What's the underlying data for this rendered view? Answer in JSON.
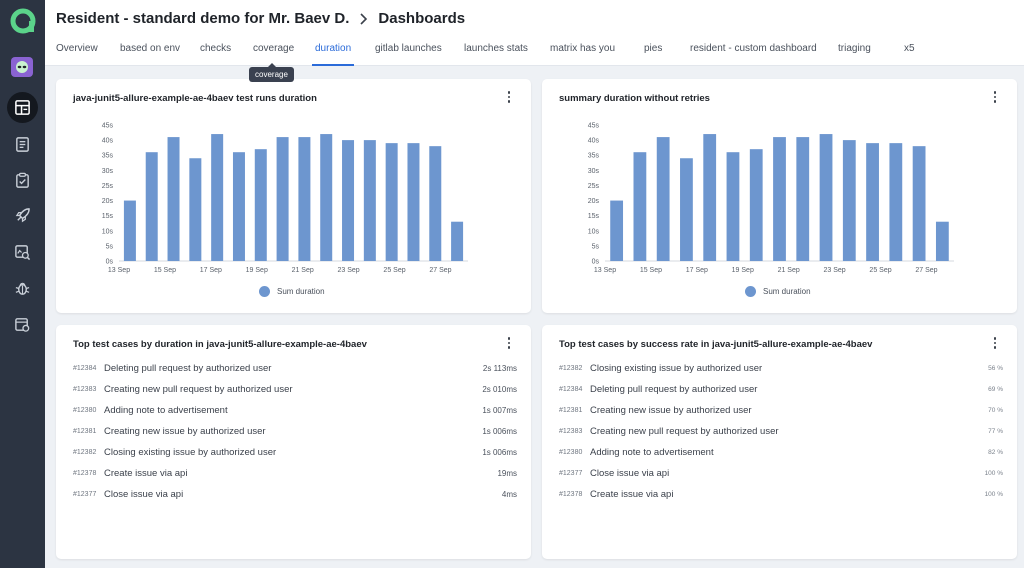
{
  "breadcrumb": {
    "project": "Resident - standard demo for Mr. Baev D.",
    "page": "Dashboards"
  },
  "tabs": [
    "Overview",
    "based on env",
    "checks",
    "coverage",
    "duration",
    "gitlab launches",
    "launches stats",
    "matrix has you",
    "pies",
    "resident - custom dashboard",
    "triaging",
    "x5"
  ],
  "active_tab": "duration",
  "tooltip": "coverage",
  "sidebar": {
    "items": [
      {
        "icon": "dashboards-icon",
        "active": true
      },
      {
        "icon": "test-cases-icon",
        "active": false
      },
      {
        "icon": "test-plans-icon",
        "active": false
      },
      {
        "icon": "launches-icon",
        "active": false
      },
      {
        "icon": "analytics-icon",
        "active": false
      },
      {
        "icon": "defects-icon",
        "active": false
      },
      {
        "icon": "jobs-icon",
        "active": false
      }
    ]
  },
  "accent_color": "#6d96cf",
  "chart_data": [
    {
      "type": "bar",
      "title": "java-junit5-allure-example-ae-4baev test runs duration",
      "y_ticks": [
        "0s",
        "5s",
        "10s",
        "15s",
        "20s",
        "25s",
        "30s",
        "35s",
        "40s",
        "45s"
      ],
      "ylim": [
        0,
        45
      ],
      "x_ticks": [
        "13 Sep",
        "15 Sep",
        "17 Sep",
        "19 Sep",
        "21 Sep",
        "23 Sep",
        "25 Sep",
        "27 Sep"
      ],
      "values": [
        20,
        36,
        41,
        34,
        42,
        36,
        37,
        41,
        41,
        42,
        40,
        40,
        39,
        39,
        38,
        13
      ],
      "legend": [
        "Sum duration"
      ],
      "grid": false
    },
    {
      "type": "bar",
      "title": "summary duration without retries",
      "y_ticks": [
        "0s",
        "5s",
        "10s",
        "15s",
        "20s",
        "25s",
        "30s",
        "35s",
        "40s",
        "45s"
      ],
      "ylim": [
        0,
        45
      ],
      "x_ticks": [
        "13 Sep",
        "15 Sep",
        "17 Sep",
        "19 Sep",
        "21 Sep",
        "23 Sep",
        "25 Sep",
        "27 Sep"
      ],
      "values": [
        20,
        36,
        41,
        34,
        42,
        36,
        37,
        41,
        41,
        42,
        40,
        39,
        39,
        38,
        13
      ],
      "legend": [
        "Sum duration"
      ],
      "grid": false
    }
  ],
  "top_duration": {
    "title": "Top test cases by duration in java-junit5-allure-example-ae-4baev",
    "rows": [
      {
        "id": "#12384",
        "name": "Deleting pull request by authorized user",
        "value": "2s 113ms"
      },
      {
        "id": "#12383",
        "name": "Creating new pull request by authorized user",
        "value": "2s 010ms"
      },
      {
        "id": "#12380",
        "name": "Adding note to advertisement",
        "value": "1s 007ms"
      },
      {
        "id": "#12381",
        "name": "Creating new issue by authorized user",
        "value": "1s 006ms"
      },
      {
        "id": "#12382",
        "name": "Closing existing issue by authorized user",
        "value": "1s 006ms"
      },
      {
        "id": "#12378",
        "name": "Create issue via api",
        "value": "19ms"
      },
      {
        "id": "#12377",
        "name": "Close issue via api",
        "value": "4ms"
      }
    ]
  },
  "top_success": {
    "title": "Top test cases by success rate in java-junit5-allure-example-ae-4baev",
    "rows": [
      {
        "id": "#12382",
        "name": "Closing existing issue by authorized user",
        "value": "56 %"
      },
      {
        "id": "#12384",
        "name": "Deleting pull request by authorized user",
        "value": "69 %"
      },
      {
        "id": "#12381",
        "name": "Creating new issue by authorized user",
        "value": "70 %"
      },
      {
        "id": "#12383",
        "name": "Creating new pull request by authorized user",
        "value": "77 %"
      },
      {
        "id": "#12380",
        "name": "Adding note to advertisement",
        "value": "82 %"
      },
      {
        "id": "#12377",
        "name": "Close issue via api",
        "value": "100 %"
      },
      {
        "id": "#12378",
        "name": "Create issue via api",
        "value": "100 %"
      }
    ]
  }
}
